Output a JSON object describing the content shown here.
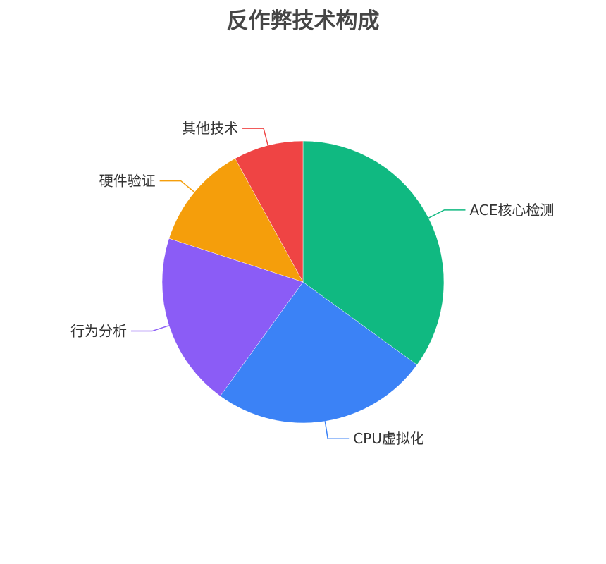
{
  "chart_data": {
    "type": "pie",
    "title": "反作弊技术构成",
    "start": "top",
    "direction": "clockwise",
    "slices": [
      {
        "label": "ACE核心检测",
        "value": 35,
        "color": "#10b981"
      },
      {
        "label": "CPU虚拟化",
        "value": 25,
        "color": "#3b82f6"
      },
      {
        "label": "行为分析",
        "value": 20,
        "color": "#8b5cf6"
      },
      {
        "label": "硬件验证",
        "value": 12,
        "color": "#f59e0b"
      },
      {
        "label": "其他技术",
        "value": 8,
        "color": "#ef4444"
      }
    ]
  }
}
